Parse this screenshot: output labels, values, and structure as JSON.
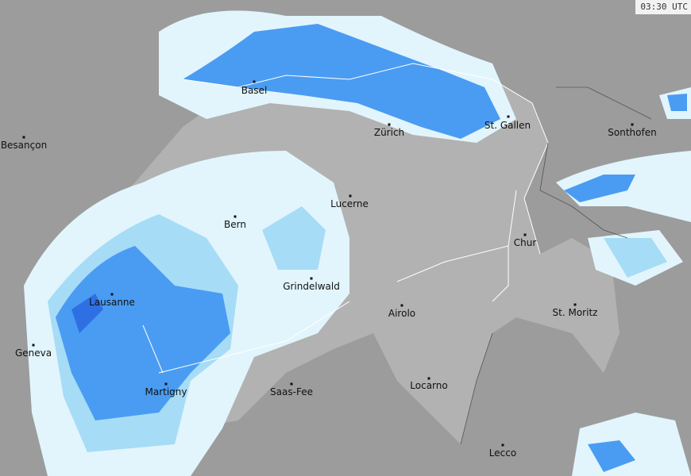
{
  "timestamp": "03:30 UTC",
  "colors": {
    "outside_land": "#9c9c9c",
    "switzerland": "#b2b2b2",
    "precip_light": "#e2f5fc",
    "precip_low": "#a6dcf6",
    "precip_mid": "#4a9cf2",
    "precip_high": "#2e70e4",
    "precip_max": "#1c4ccc"
  },
  "cities": [
    {
      "name": "Basel"
    },
    {
      "name": "Zürich"
    },
    {
      "name": "St. Gallen"
    },
    {
      "name": "Besançon"
    },
    {
      "name": "Sonthofen"
    },
    {
      "name": "Lucerne"
    },
    {
      "name": "Bern"
    },
    {
      "name": "Chur"
    },
    {
      "name": "Grindelwald"
    },
    {
      "name": "Lausanne"
    },
    {
      "name": "Airolo"
    },
    {
      "name": "St. Moritz"
    },
    {
      "name": "Geneva"
    },
    {
      "name": "Martigny"
    },
    {
      "name": "Saas-Fee"
    },
    {
      "name": "Locarno"
    },
    {
      "name": "Lecco"
    }
  ]
}
